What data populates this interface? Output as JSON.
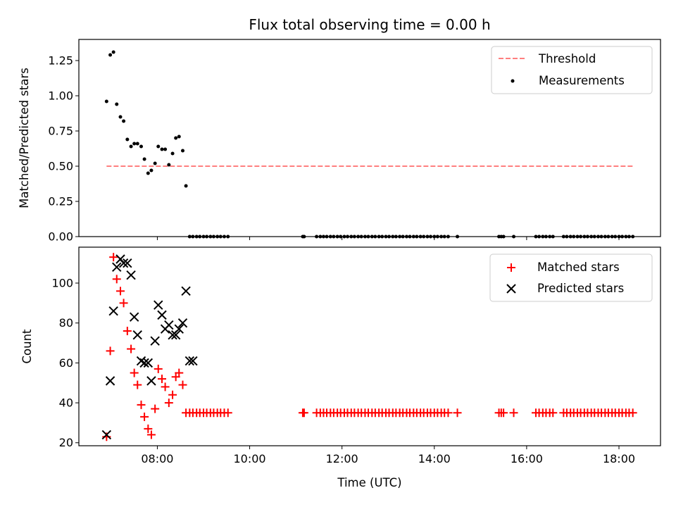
{
  "chart_data": [
    {
      "type": "scatter",
      "title": "Flux total observing time = 0.00 h",
      "xlabel": "",
      "ylabel": "Matched/Predicted stars",
      "ylim": [
        0,
        1.4
      ],
      "yticks": [
        0.0,
        0.25,
        0.5,
        0.75,
        1.0,
        1.25
      ],
      "ytick_labels": [
        "0.00",
        "0.25",
        "0.50",
        "0.75",
        "1.00",
        "1.25"
      ],
      "xlim": [
        6.3,
        18.9
      ],
      "xticks": [
        8,
        10,
        12,
        14,
        16,
        18
      ],
      "legend": {
        "placement": "top-right",
        "entries": [
          "Threshold",
          "Measurements"
        ]
      },
      "threshold": {
        "name": "Threshold",
        "value": 0.5,
        "x_range": [
          6.9,
          18.3
        ],
        "color": "#ff7f7f"
      },
      "series": [
        {
          "name": "Measurements",
          "color": "#000000",
          "x": [
            6.9,
            6.98,
            7.05,
            7.12,
            7.2,
            7.27,
            7.35,
            7.43,
            7.5,
            7.57,
            7.65,
            7.72,
            7.8,
            7.87,
            7.95,
            8.02,
            8.1,
            8.17,
            8.25,
            8.33,
            8.4,
            8.47,
            8.55,
            8.62,
            8.7,
            8.77,
            8.85,
            8.92,
            9.0,
            9.07,
            9.15,
            9.22,
            9.3,
            9.37,
            9.45,
            9.53,
            11.15,
            11.18,
            11.45,
            11.53,
            11.6,
            11.67,
            11.75,
            11.82,
            11.9,
            11.97,
            12.05,
            12.12,
            12.2,
            12.27,
            12.35,
            12.42,
            12.5,
            12.57,
            12.65,
            12.72,
            12.8,
            12.87,
            12.95,
            13.02,
            13.1,
            13.17,
            13.25,
            13.32,
            13.4,
            13.47,
            13.55,
            13.62,
            13.7,
            13.77,
            13.85,
            13.92,
            14.0,
            14.07,
            14.15,
            14.22,
            14.3,
            14.5,
            15.4,
            15.45,
            15.5,
            15.72,
            16.2,
            16.27,
            16.35,
            16.42,
            16.5,
            16.57,
            16.8,
            16.87,
            16.95,
            17.02,
            17.1,
            17.17,
            17.25,
            17.32,
            17.4,
            17.47,
            17.55,
            17.62,
            17.7,
            17.77,
            17.85,
            17.92,
            18.0,
            18.07,
            18.15,
            18.22,
            18.3
          ],
          "y": [
            0.96,
            1.29,
            1.31,
            0.94,
            0.85,
            0.82,
            0.69,
            0.64,
            0.66,
            0.66,
            0.64,
            0.55,
            0.45,
            0.47,
            0.52,
            0.64,
            0.62,
            0.62,
            0.51,
            0.59,
            0.7,
            0.71,
            0.61,
            0.36,
            0,
            0,
            0,
            0,
            0,
            0,
            0,
            0,
            0,
            0,
            0,
            0,
            0,
            0,
            0,
            0,
            0,
            0,
            0,
            0,
            0,
            0,
            0,
            0,
            0,
            0,
            0,
            0,
            0,
            0,
            0,
            0,
            0,
            0,
            0,
            0,
            0,
            0,
            0,
            0,
            0,
            0,
            0,
            0,
            0,
            0,
            0,
            0,
            0,
            0,
            0,
            0,
            0,
            0,
            0,
            0,
            0,
            0,
            0,
            0,
            0,
            0,
            0,
            0,
            0,
            0,
            0,
            0,
            0,
            0,
            0,
            0,
            0,
            0,
            0,
            0,
            0,
            0,
            0,
            0,
            0,
            0,
            0,
            0,
            0
          ]
        }
      ]
    },
    {
      "type": "scatter",
      "title": "",
      "xlabel": "Time (UTC)",
      "ylabel": "Count",
      "ylim": [
        18.5,
        118
      ],
      "yticks": [
        20,
        40,
        60,
        80,
        100
      ],
      "ytick_labels": [
        "20",
        "40",
        "60",
        "80",
        "100"
      ],
      "xlim": [
        6.3,
        18.9
      ],
      "xticks": [
        8,
        10,
        12,
        14,
        16,
        18
      ],
      "xtick_labels": [
        "08:00",
        "10:00",
        "12:00",
        "14:00",
        "16:00",
        "18:00"
      ],
      "legend": {
        "placement": "top-right",
        "entries": [
          "Matched stars",
          "Predicted stars"
        ]
      },
      "series": [
        {
          "name": "Matched stars",
          "marker": "plus",
          "color": "#ff0000",
          "x": [
            6.9,
            6.98,
            7.05,
            7.12,
            7.2,
            7.27,
            7.35,
            7.43,
            7.5,
            7.57,
            7.65,
            7.72,
            7.8,
            7.87,
            7.95,
            8.02,
            8.1,
            8.17,
            8.25,
            8.33,
            8.4,
            8.47,
            8.55,
            8.62,
            8.7,
            8.77,
            8.85,
            8.92,
            9.0,
            9.07,
            9.15,
            9.22,
            9.3,
            9.37,
            9.45,
            9.53,
            11.15,
            11.18,
            11.45,
            11.53,
            11.6,
            11.67,
            11.75,
            11.82,
            11.9,
            11.97,
            12.05,
            12.12,
            12.2,
            12.27,
            12.35,
            12.42,
            12.5,
            12.57,
            12.65,
            12.72,
            12.8,
            12.87,
            12.95,
            13.02,
            13.1,
            13.17,
            13.25,
            13.32,
            13.4,
            13.47,
            13.55,
            13.62,
            13.7,
            13.77,
            13.85,
            13.92,
            14.0,
            14.07,
            14.15,
            14.22,
            14.3,
            14.5,
            15.4,
            15.45,
            15.5,
            15.72,
            16.2,
            16.27,
            16.35,
            16.42,
            16.5,
            16.57,
            16.8,
            16.87,
            16.95,
            17.02,
            17.1,
            17.17,
            17.25,
            17.32,
            17.4,
            17.47,
            17.55,
            17.62,
            17.7,
            17.77,
            17.85,
            17.92,
            18.0,
            18.07,
            18.15,
            18.22,
            18.3
          ],
          "y": [
            23,
            66,
            113,
            102,
            96,
            90,
            76,
            67,
            55,
            49,
            39,
            33,
            27,
            24,
            37,
            57,
            52,
            48,
            40,
            44,
            53,
            55,
            49,
            35,
            35,
            35,
            35,
            35,
            35,
            35,
            35,
            35,
            35,
            35,
            35,
            35,
            35,
            35,
            35,
            35,
            35,
            35,
            35,
            35,
            35,
            35,
            35,
            35,
            35,
            35,
            35,
            35,
            35,
            35,
            35,
            35,
            35,
            35,
            35,
            35,
            35,
            35,
            35,
            35,
            35,
            35,
            35,
            35,
            35,
            35,
            35,
            35,
            35,
            35,
            35,
            35,
            35,
            35,
            35,
            35,
            35,
            35,
            35,
            35,
            35,
            35,
            35,
            35,
            35,
            35,
            35,
            35,
            35,
            35,
            35,
            35,
            35,
            35,
            35,
            35,
            35,
            35,
            35,
            35,
            35,
            35,
            35,
            35,
            35
          ]
        },
        {
          "name": "Predicted stars",
          "marker": "x",
          "color": "#000000",
          "x": [
            6.9,
            6.98,
            7.05,
            7.12,
            7.2,
            7.27,
            7.35,
            7.43,
            7.5,
            7.57,
            7.65,
            7.72,
            7.8,
            7.87,
            7.95,
            8.02,
            8.1,
            8.17,
            8.25,
            8.33,
            8.4,
            8.47,
            8.55,
            8.62,
            8.7,
            8.77
          ],
          "y": [
            24,
            51,
            86,
            108,
            112,
            110,
            110,
            104,
            83,
            74,
            61,
            60,
            60,
            51,
            71,
            89,
            84,
            77,
            79,
            74,
            74,
            77,
            80,
            96,
            61,
            61
          ]
        }
      ]
    }
  ]
}
